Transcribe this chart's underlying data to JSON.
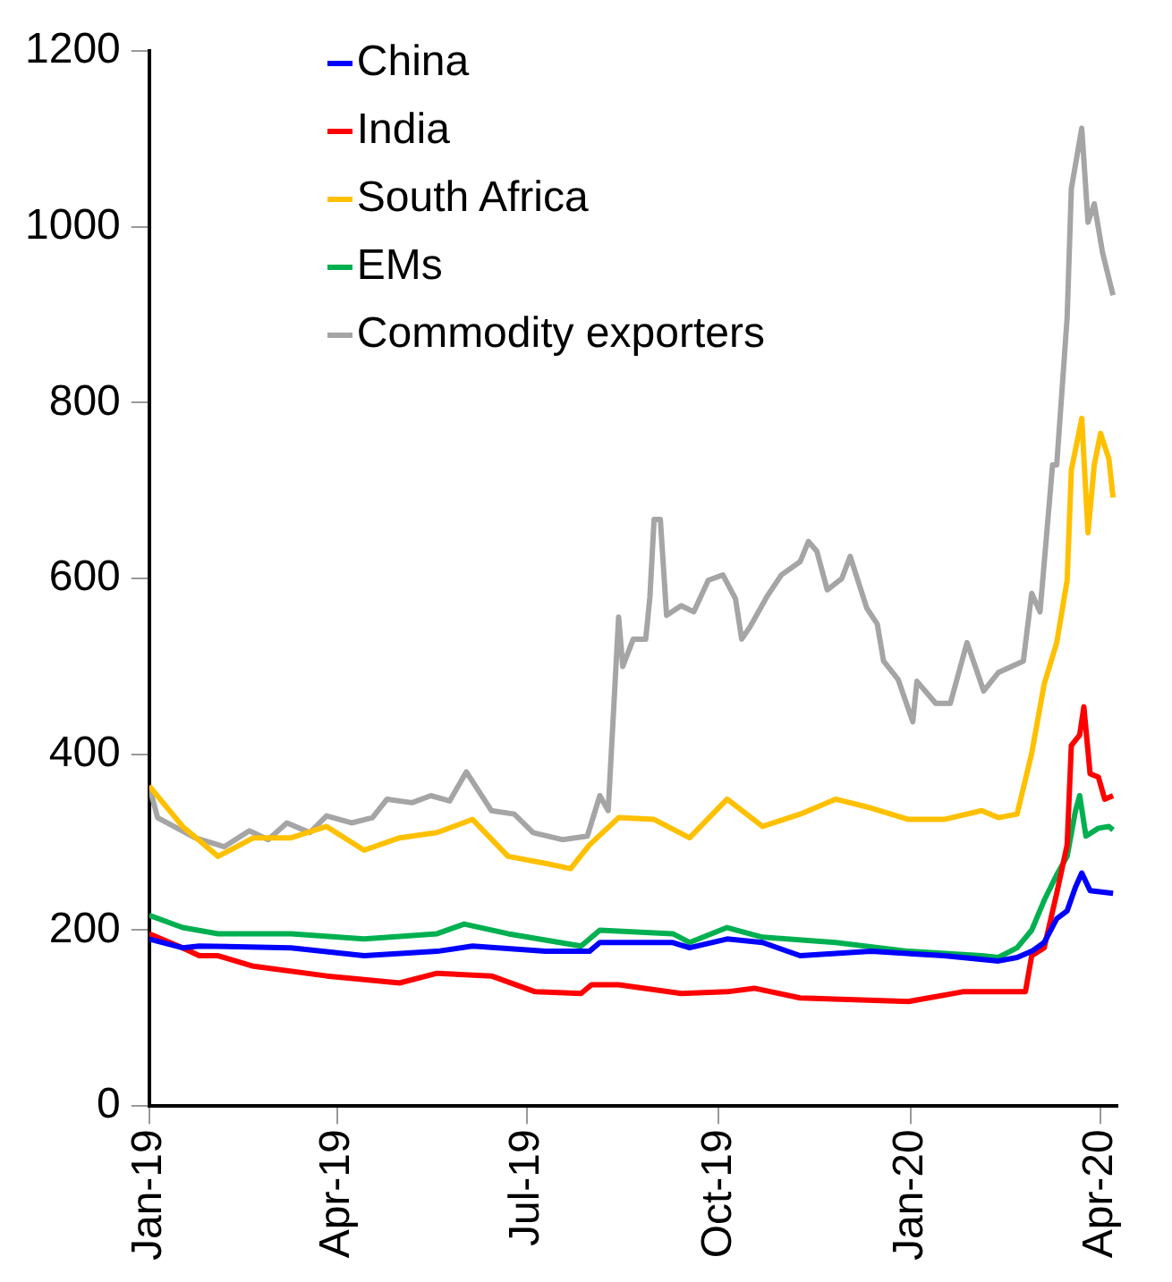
{
  "chart_data": {
    "type": "line",
    "legend": "top left",
    "grid": false,
    "xlim": [
      "2019-01-01",
      "2020-04-09"
    ],
    "xticks": [
      {
        "value": "2019-01-01",
        "label": "Jan-19"
      },
      {
        "value": "2019-04-01",
        "label": "Apr-19"
      },
      {
        "value": "2019-07-01",
        "label": "Jul-19"
      },
      {
        "value": "2019-10-01",
        "label": "Oct-19"
      },
      {
        "value": "2020-01-01",
        "label": "Jan-20"
      },
      {
        "value": "2020-04-01",
        "label": "Apr-20"
      }
    ],
    "ylim": [
      0,
      1200
    ],
    "yticks": [
      0,
      200,
      400,
      600,
      800,
      1000,
      1200
    ],
    "series": [
      {
        "name": "China",
        "color": "#0000ff",
        "x": [
          "2019-01-01",
          "2019-01-17",
          "2019-01-25",
          "2019-03-10",
          "2019-04-14",
          "2019-05-19",
          "2019-06-05",
          "2019-07-10",
          "2019-07-31",
          "2019-08-05",
          "2019-09-09",
          "2019-09-17",
          "2019-10-05",
          "2019-10-22",
          "2019-11-09",
          "2019-12-13",
          "2020-01-17",
          "2020-02-12",
          "2020-02-21",
          "2020-02-28",
          "2020-03-05",
          "2020-03-11",
          "2020-03-16",
          "2020-03-20",
          "2020-03-23",
          "2020-03-27",
          "2020-04-07"
        ],
        "values": [
          190,
          180,
          182,
          180,
          171,
          176,
          182,
          176,
          176,
          186,
          186,
          180,
          190,
          186,
          171,
          176,
          171,
          165,
          169,
          176,
          186,
          213,
          222,
          249,
          265,
          245,
          242
        ]
      },
      {
        "name": "India",
        "color": "#ff0000",
        "x": [
          "2019-01-01",
          "2019-01-17",
          "2019-01-25",
          "2019-02-03",
          "2019-02-20",
          "2019-03-27",
          "2019-05-01",
          "2019-05-19",
          "2019-06-14",
          "2019-07-05",
          "2019-07-27",
          "2019-08-01",
          "2019-08-14",
          "2019-09-13",
          "2019-10-05",
          "2019-10-18",
          "2019-11-09",
          "2019-12-31",
          "2020-01-26",
          "2020-02-25",
          "2020-02-28",
          "2020-03-05",
          "2020-03-11",
          "2020-03-16",
          "2020-03-18",
          "2020-03-22",
          "2020-03-24",
          "2020-03-27",
          "2020-03-31",
          "2020-04-03",
          "2020-04-07"
        ],
        "values": [
          196,
          180,
          171,
          171,
          159,
          148,
          140,
          151,
          148,
          130,
          128,
          138,
          138,
          128,
          130,
          134,
          123,
          119,
          130,
          130,
          171,
          180,
          242,
          297,
          410,
          422,
          454,
          378,
          374,
          349,
          353
        ]
      },
      {
        "name": "South Africa",
        "color": "#ffc000",
        "x": [
          "2019-01-01",
          "2019-01-17",
          "2019-02-03",
          "2019-02-20",
          "2019-03-10",
          "2019-03-27",
          "2019-04-14",
          "2019-05-01",
          "2019-05-19",
          "2019-06-05",
          "2019-06-22",
          "2019-07-10",
          "2019-07-22",
          "2019-07-31",
          "2019-08-14",
          "2019-08-31",
          "2019-09-17",
          "2019-10-05",
          "2019-10-22",
          "2019-11-09",
          "2019-11-26",
          "2019-12-13",
          "2019-12-31",
          "2020-01-17",
          "2020-02-04",
          "2020-02-12",
          "2020-02-21",
          "2020-02-28",
          "2020-03-05",
          "2020-03-11",
          "2020-03-16",
          "2020-03-18",
          "2020-03-23",
          "2020-03-26",
          "2020-03-29",
          "2020-04-01",
          "2020-04-05",
          "2020-04-07"
        ],
        "values": [
          364,
          318,
          284,
          305,
          305,
          318,
          291,
          305,
          311,
          326,
          284,
          276,
          270,
          297,
          328,
          326,
          305,
          349,
          318,
          332,
          349,
          339,
          326,
          326,
          336,
          328,
          332,
          401,
          480,
          527,
          598,
          723,
          782,
          652,
          729,
          765,
          736,
          692
        ]
      },
      {
        "name": "EMs",
        "color": "#00b050",
        "x": [
          "2019-01-01",
          "2019-01-17",
          "2019-02-03",
          "2019-03-10",
          "2019-04-14",
          "2019-05-19",
          "2019-06-01",
          "2019-06-22",
          "2019-07-27",
          "2019-08-05",
          "2019-09-09",
          "2019-09-17",
          "2019-10-05",
          "2019-10-22",
          "2019-11-26",
          "2019-12-31",
          "2020-02-04",
          "2020-02-12",
          "2020-02-21",
          "2020-02-28",
          "2020-03-05",
          "2020-03-11",
          "2020-03-16",
          "2020-03-20",
          "2020-03-22",
          "2020-03-25",
          "2020-03-31",
          "2020-04-05",
          "2020-04-07"
        ],
        "values": [
          217,
          203,
          196,
          196,
          190,
          196,
          207,
          196,
          182,
          200,
          196,
          186,
          203,
          192,
          186,
          176,
          171,
          169,
          180,
          200,
          234,
          263,
          284,
          336,
          353,
          307,
          316,
          318,
          314
        ]
      },
      {
        "name": "Commodity exporters",
        "color": "#a5a5a5",
        "x": [
          "2019-01-01",
          "2019-01-05",
          "2019-01-23",
          "2019-02-06",
          "2019-02-18",
          "2019-02-27",
          "2019-03-08",
          "2019-03-19",
          "2019-03-27",
          "2019-04-08",
          "2019-04-18",
          "2019-04-25",
          "2019-05-07",
          "2019-05-16",
          "2019-05-25",
          "2019-06-02",
          "2019-06-14",
          "2019-06-25",
          "2019-07-04",
          "2019-07-18",
          "2019-07-30",
          "2019-08-05",
          "2019-08-09",
          "2019-08-14",
          "2019-08-16",
          "2019-08-21",
          "2019-08-27",
          "2019-08-29",
          "2019-08-31",
          "2019-09-03",
          "2019-09-06",
          "2019-09-13",
          "2019-09-19",
          "2019-09-26",
          "2019-10-03",
          "2019-10-09",
          "2019-10-12",
          "2019-10-16",
          "2019-10-24",
          "2019-10-31",
          "2019-11-09",
          "2019-11-13",
          "2019-11-17",
          "2019-11-22",
          "2019-11-29",
          "2019-12-03",
          "2019-12-11",
          "2019-12-16",
          "2019-12-19",
          "2019-12-26",
          "2020-01-02",
          "2020-01-04",
          "2020-01-13",
          "2020-01-20",
          "2020-01-28",
          "2020-02-05",
          "2020-02-12",
          "2020-02-24",
          "2020-02-28",
          "2020-03-03",
          "2020-03-09",
          "2020-03-11",
          "2020-03-16",
          "2020-03-18",
          "2020-03-23",
          "2020-03-26",
          "2020-03-29",
          "2020-04-02",
          "2020-04-07"
        ],
        "values": [
          364,
          328,
          305,
          295,
          313,
          303,
          322,
          311,
          330,
          322,
          328,
          349,
          345,
          353,
          347,
          380,
          336,
          332,
          311,
          303,
          307,
          353,
          336,
          556,
          500,
          531,
          531,
          579,
          667,
          667,
          558,
          569,
          562,
          598,
          604,
          577,
          531,
          545,
          579,
          604,
          619,
          642,
          631,
          587,
          600,
          625,
          566,
          548,
          506,
          485,
          437,
          483,
          458,
          458,
          527,
          472,
          493,
          506,
          583,
          562,
          729,
          729,
          897,
          1043,
          1112,
          1005,
          1026,
          970,
          922
        ]
      }
    ]
  }
}
